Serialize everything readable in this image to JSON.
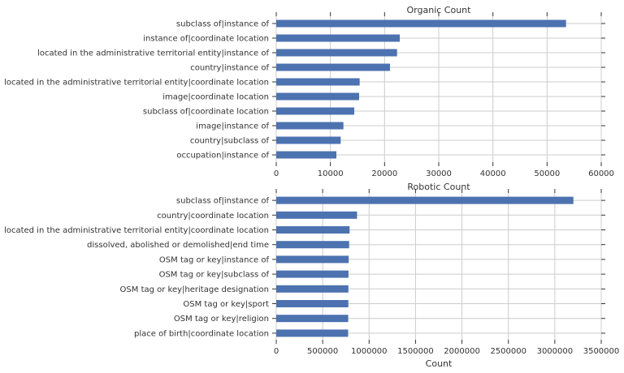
{
  "colors": {
    "bar": "#4c72b0",
    "grid": "#cccccc",
    "axis": "#333333"
  },
  "chart_data": [
    {
      "type": "bar",
      "orientation": "horizontal",
      "title": "Organic Count",
      "xlabel": "",
      "ylabel": "",
      "xlim": [
        0,
        60000
      ],
      "xticks": [
        0,
        10000,
        20000,
        30000,
        40000,
        50000,
        60000
      ],
      "grid": true,
      "legend": "none",
      "categories": [
        "subclass of|instance of",
        "instance of|coordinate location",
        "located in the administrative territorial entity|instance of",
        "country|instance of",
        "located in the administrative territorial entity|coordinate location",
        "image|coordinate location",
        "subclass of|coordinate location",
        "image|instance of",
        "country|subclass of",
        "occupation|instance of"
      ],
      "values": [
        53500,
        22800,
        22300,
        21000,
        15400,
        15300,
        14400,
        12400,
        11900,
        11100
      ]
    },
    {
      "type": "bar",
      "orientation": "horizontal",
      "title": "Robotic Count",
      "xlabel": "Count",
      "ylabel": "",
      "xlim": [
        0,
        3500000
      ],
      "xticks": [
        0,
        500000,
        1000000,
        1500000,
        2000000,
        2500000,
        3000000,
        3500000
      ],
      "grid": true,
      "legend": "none",
      "categories": [
        "subclass of|instance of",
        "country|coordinate location",
        "located in the administrative territorial entity|coordinate location",
        "dissolved, abolished or demolished|end time",
        "OSM tag or key|instance of",
        "OSM tag or key|subclass of",
        "OSM tag or key|heritage designation",
        "OSM tag or key|sport",
        "OSM tag or key|religion",
        "place of birth|coordinate location"
      ],
      "values": [
        3200000,
        870000,
        790000,
        785000,
        780000,
        778000,
        777000,
        776000,
        775000,
        774000
      ]
    }
  ]
}
